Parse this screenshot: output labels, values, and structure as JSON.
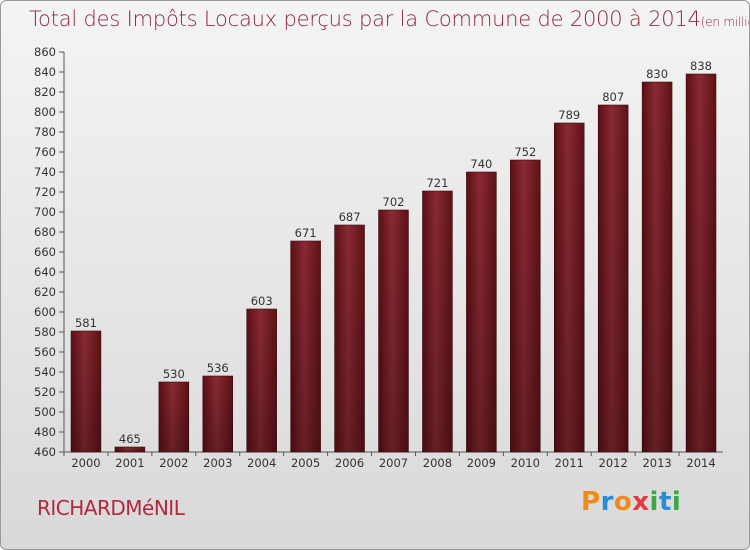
{
  "title_main": "Total des Impôts Locaux perçus par la Commune de 2000 à 2014",
  "title_unit": "(en milliers d'€)",
  "commune": "RICHARDMéNIL",
  "logo": {
    "letters": [
      "P",
      "r",
      "o",
      "x",
      "i",
      "t",
      "i"
    ],
    "colors": [
      "#f08a1c",
      "#2a8bd6",
      "#f08a1c",
      "#e23b3b",
      "#3aa845",
      "#2a8bd6",
      "#3aa845"
    ]
  },
  "bar_color": "#7a1a22",
  "chart_data": {
    "type": "bar",
    "categories": [
      "2000",
      "2001",
      "2002",
      "2003",
      "2004",
      "2005",
      "2006",
      "2007",
      "2008",
      "2009",
      "2010",
      "2011",
      "2012",
      "2013",
      "2014"
    ],
    "values": [
      581,
      465,
      530,
      536,
      603,
      671,
      687,
      702,
      721,
      740,
      752,
      789,
      807,
      830,
      838
    ],
    "title": "Total des Impôts Locaux perçus par la Commune de 2000 à 2014",
    "ylim": [
      460,
      860
    ],
    "yticks": [
      460,
      480,
      500,
      520,
      540,
      560,
      580,
      600,
      620,
      640,
      660,
      680,
      700,
      720,
      740,
      760,
      780,
      800,
      820,
      840,
      860
    ],
    "grid": false
  }
}
